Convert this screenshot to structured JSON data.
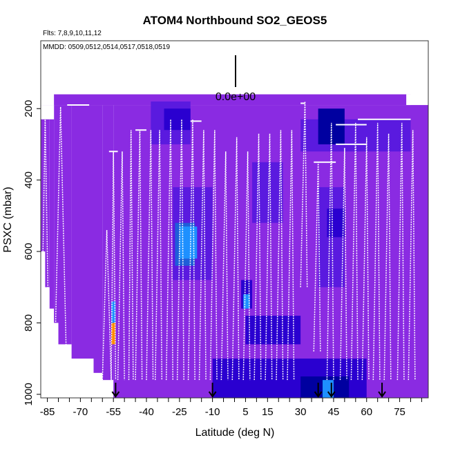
{
  "chart_data": {
    "type": "heatmap",
    "title": "ATOM4 Northbound SO2_GEOS5",
    "flights_note": "Flts: 7,8,9,10,11,12",
    "dates_note": "MMDD: 0509,0512,0514,0517,0518,0519",
    "xlabel": "Latitude (deg N)",
    "ylabel": "PSXC (mbar)",
    "xlim": [
      -88,
      88
    ],
    "ylim": [
      1010,
      10
    ],
    "x_ticks": [
      -85,
      -70,
      -55,
      -40,
      -25,
      -10,
      5,
      15,
      30,
      45,
      60,
      75
    ],
    "y_ticks": [
      200,
      400,
      600,
      800,
      1000
    ],
    "color_scale_value": "0.0e+00",
    "arrow_latitudes": [
      -54,
      -10,
      38,
      44,
      67
    ],
    "grid": false,
    "colors": {
      "background_field": "#8a2be2",
      "low": "#5a1adf",
      "mid": "#2a00d0",
      "dark": "#0000a0",
      "light_blue": "#1e90ff",
      "orange": "#ff8c00",
      "flight_track": "#ffffff"
    }
  }
}
